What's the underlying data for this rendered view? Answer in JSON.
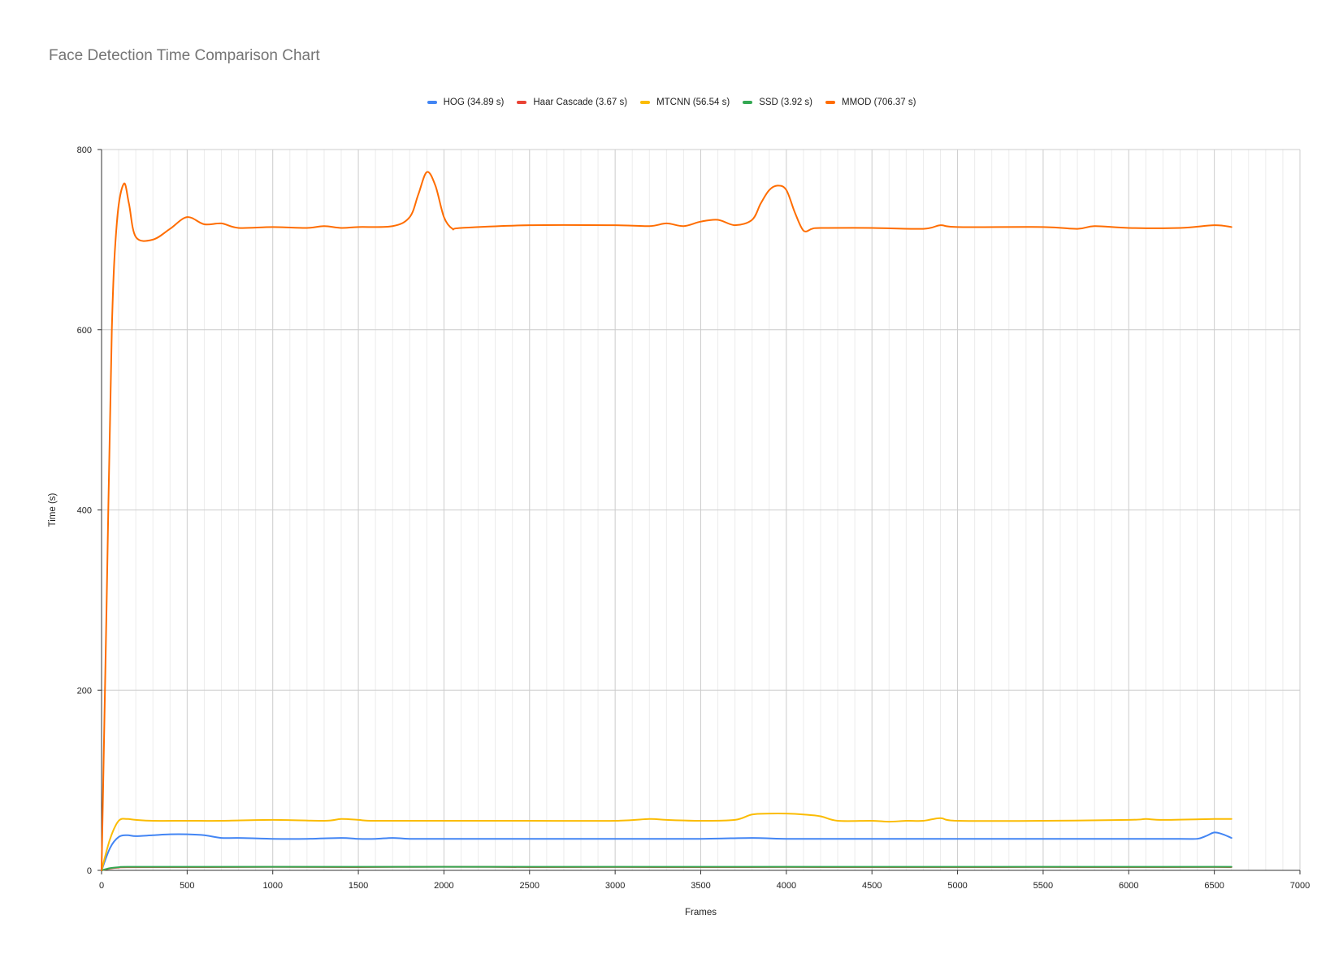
{
  "chart_data": {
    "type": "line",
    "title": "Face Detection Time Comparison Chart",
    "xlabel": "Frames",
    "ylabel": "Time (s)",
    "xlim": [
      0,
      7000
    ],
    "ylim": [
      0,
      800
    ],
    "x_ticks": [
      0,
      500,
      1000,
      1500,
      2000,
      2500,
      3000,
      3500,
      4000,
      4500,
      5000,
      5500,
      6000,
      6500,
      7000
    ],
    "y_ticks": [
      0,
      200,
      400,
      600,
      800
    ],
    "grid": true,
    "legend_position": "top",
    "series": [
      {
        "name": "HOG (34.89 s)",
        "color": "#4285f4",
        "x": [
          0,
          50,
          100,
          150,
          200,
          300,
          400,
          500,
          600,
          700,
          800,
          1000,
          1200,
          1400,
          1500,
          1600,
          1700,
          1800,
          2000,
          2500,
          3000,
          3500,
          3800,
          4000,
          4500,
          5000,
          5500,
          6000,
          6300,
          6400,
          6450,
          6500,
          6550,
          6600
        ],
        "y": [
          0,
          25,
          37,
          39,
          38,
          39,
          40,
          40,
          39,
          36,
          36,
          35,
          35,
          36,
          35,
          35,
          36,
          35,
          35,
          35,
          35,
          35,
          36,
          35,
          35,
          35,
          35,
          35,
          35,
          35,
          38,
          42,
          40,
          36
        ]
      },
      {
        "name": "Haar Cascade (3.67 s)",
        "color": "#ea4335",
        "x": [
          0,
          50,
          100,
          150,
          500,
          1000,
          1500,
          2000,
          2500,
          3000,
          3500,
          4000,
          4500,
          5000,
          5500,
          6000,
          6500,
          6600
        ],
        "y": [
          0,
          2,
          3,
          3.5,
          3.6,
          3.8,
          3.6,
          4,
          3.6,
          3.7,
          3.6,
          3.7,
          3.6,
          3.6,
          3.7,
          3.6,
          3.7,
          3.6
        ]
      },
      {
        "name": "MTCNN (56.54 s)",
        "color": "#fbbc04",
        "x": [
          0,
          50,
          100,
          150,
          200,
          300,
          500,
          700,
          1000,
          1300,
          1400,
          1500,
          1600,
          2000,
          2500,
          3000,
          3200,
          3300,
          3500,
          3700,
          3800,
          3900,
          4000,
          4100,
          4200,
          4300,
          4500,
          4600,
          4700,
          4800,
          4900,
          5000,
          5500,
          6000,
          6100,
          6200,
          6500,
          6600
        ],
        "y": [
          0,
          35,
          55,
          57,
          56,
          55,
          55,
          55,
          56,
          55,
          57,
          56,
          55,
          55,
          55,
          55,
          57,
          56,
          55,
          56,
          62,
          63,
          63,
          62,
          60,
          55,
          55,
          54,
          55,
          55,
          58,
          55,
          55,
          56,
          57,
          56,
          57,
          57
        ]
      },
      {
        "name": "SSD (3.92 s)",
        "color": "#34a853",
        "x": [
          0,
          50,
          100,
          150,
          500,
          1000,
          1500,
          2000,
          2500,
          3000,
          3500,
          4000,
          4500,
          5000,
          5500,
          6000,
          6500,
          6600
        ],
        "y": [
          0,
          2.5,
          3.5,
          3.9,
          3.9,
          3.9,
          4,
          3.9,
          3.9,
          3.9,
          3.9,
          3.9,
          4,
          3.9,
          3.9,
          3.9,
          3.9,
          3.9
        ]
      },
      {
        "name": "MMOD (706.37 s)",
        "color": "#ff6d01",
        "x": [
          0,
          30,
          60,
          90,
          130,
          160,
          200,
          300,
          400,
          500,
          600,
          700,
          800,
          1000,
          1200,
          1300,
          1400,
          1500,
          1700,
          1800,
          1850,
          1900,
          1950,
          2000,
          2050,
          2100,
          2500,
          3000,
          3200,
          3300,
          3400,
          3500,
          3600,
          3700,
          3800,
          3850,
          3900,
          3950,
          4000,
          4050,
          4100,
          4150,
          4200,
          4500,
          4800,
          4900,
          5000,
          5500,
          5700,
          5800,
          6000,
          6300,
          6500,
          6600
        ],
        "y": [
          0,
          300,
          600,
          720,
          762,
          740,
          703,
          700,
          712,
          725,
          717,
          718,
          713,
          714,
          713,
          715,
          713,
          714,
          715,
          725,
          750,
          775,
          760,
          725,
          712,
          713,
          716,
          716,
          715,
          718,
          715,
          720,
          722,
          716,
          722,
          740,
          755,
          760,
          755,
          730,
          710,
          712,
          713,
          713,
          712,
          716,
          714,
          714,
          712,
          715,
          713,
          713,
          716,
          714
        ]
      }
    ]
  }
}
